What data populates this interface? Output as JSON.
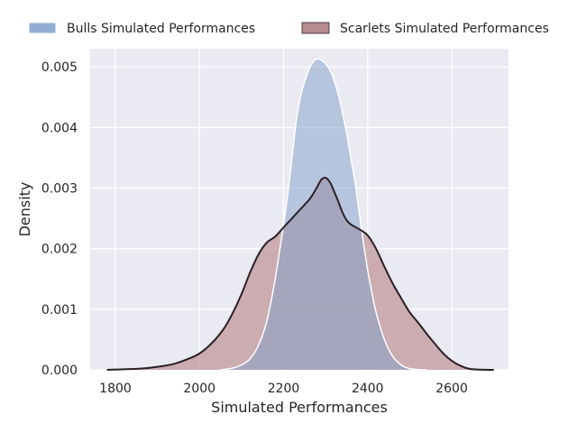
{
  "chart_data": {
    "type": "area",
    "title": "",
    "xlabel": "Simulated Performances",
    "ylabel": "Density",
    "xlim": [
      1740,
      2735
    ],
    "ylim": [
      0,
      0.0053
    ],
    "x_ticks": [
      1800,
      2000,
      2200,
      2400,
      2600
    ],
    "x_tick_labels": [
      "1800",
      "2000",
      "2200",
      "2400",
      "2600"
    ],
    "y_ticks": [
      0,
      0.001,
      0.002,
      0.003,
      0.004,
      0.005
    ],
    "y_tick_labels": [
      "0.000",
      "0.001",
      "0.002",
      "0.003",
      "0.004",
      "0.005"
    ],
    "grid": true,
    "legend_position": "top",
    "colors": {
      "background": "#eaeaf2",
      "grid": "#ffffff",
      "bulls_fill": "#7f9fca",
      "bulls_line": "#ffffff",
      "scarlets_fill": "#b88b8e",
      "scarlets_line": "#2b2025"
    },
    "series": [
      {
        "name": "Bulls Simulated Performances",
        "x": [
          2050,
          2080,
          2100,
          2120,
          2140,
          2160,
          2180,
          2200,
          2210,
          2220,
          2230,
          2240,
          2250,
          2260,
          2270,
          2280,
          2290,
          2300,
          2310,
          2320,
          2330,
          2340,
          2350,
          2360,
          2370,
          2380,
          2390,
          2400,
          2410,
          2420,
          2440,
          2460,
          2480,
          2500,
          2520,
          2540
        ],
        "values": [
          0.0,
          3e-05,
          8e-05,
          0.00018,
          0.0004,
          0.0008,
          0.0015,
          0.0024,
          0.0029,
          0.0035,
          0.0041,
          0.0045,
          0.00475,
          0.00495,
          0.00508,
          0.00513,
          0.00511,
          0.00505,
          0.00495,
          0.00478,
          0.00455,
          0.00425,
          0.0039,
          0.0035,
          0.0031,
          0.0026,
          0.0021,
          0.00165,
          0.00128,
          0.00095,
          0.0005,
          0.00022,
          8e-05,
          2e-05,
          5e-06,
          0.0
        ]
      },
      {
        "name": "Scarlets Simulated Performances",
        "x": [
          1780,
          1820,
          1860,
          1900,
          1940,
          1980,
          2000,
          2020,
          2040,
          2060,
          2080,
          2100,
          2120,
          2140,
          2160,
          2180,
          2200,
          2220,
          2240,
          2260,
          2270,
          2280,
          2290,
          2300,
          2310,
          2320,
          2330,
          2340,
          2350,
          2360,
          2380,
          2400,
          2420,
          2440,
          2460,
          2480,
          2500,
          2520,
          2540,
          2560,
          2580,
          2600,
          2620,
          2640,
          2660,
          2700
        ],
        "values": [
          0.0,
          1e-05,
          2e-05,
          5e-05,
          0.0001,
          0.0002,
          0.00027,
          0.00038,
          0.00052,
          0.0007,
          0.00095,
          0.00125,
          0.0016,
          0.0019,
          0.0021,
          0.0022,
          0.00235,
          0.0025,
          0.00265,
          0.0028,
          0.0029,
          0.00302,
          0.00314,
          0.00317,
          0.0031,
          0.00295,
          0.00278,
          0.0026,
          0.00247,
          0.0024,
          0.00232,
          0.00222,
          0.002,
          0.0017,
          0.00142,
          0.00118,
          0.00095,
          0.00078,
          0.0006,
          0.00043,
          0.00027,
          0.00015,
          7e-05,
          2e-05,
          5e-06,
          0.0
        ]
      }
    ]
  }
}
